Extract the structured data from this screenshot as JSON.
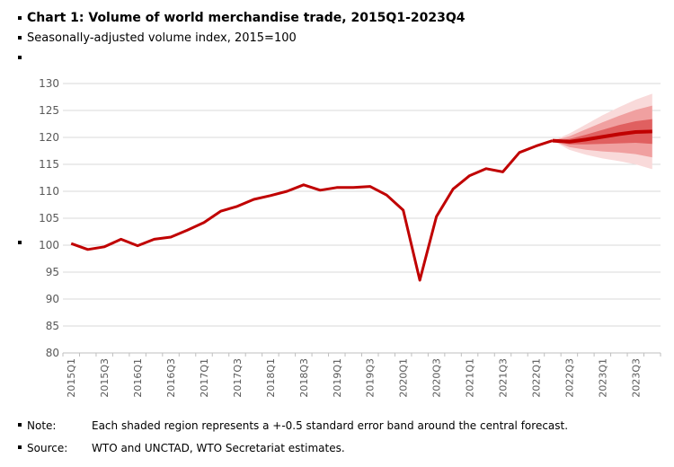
{
  "chart_data": {
    "type": "line",
    "title": "Chart 1: Volume of world merchandise trade, 2015Q1-2023Q4",
    "subtitle": "Seasonally-adjusted volume index, 2015=100",
    "categories": [
      "2015Q1",
      null,
      "2015Q3",
      null,
      "2016Q1",
      null,
      "2016Q3",
      null,
      "2017Q1",
      null,
      "2017Q3",
      null,
      "2018Q1",
      null,
      "2018Q3",
      null,
      "2019Q1",
      null,
      "2019Q3",
      null,
      "2020Q1",
      null,
      "2020Q3",
      null,
      "2021Q1",
      null,
      "2021Q3",
      null,
      "2022Q1",
      null,
      "2022Q3",
      null,
      "2023Q1",
      null,
      "2023Q3",
      null
    ],
    "series": [
      {
        "color": "#c00000",
        "values": [
          100.3,
          99.2,
          99.7,
          101.1,
          99.9,
          101.1,
          101.5,
          102.8,
          104.2,
          106.3,
          107.2,
          108.5,
          109.2,
          110.0,
          111.2,
          110.2,
          110.7,
          110.7,
          110.9,
          109.3,
          106.5,
          93.5,
          105.3,
          110.4,
          112.9,
          114.2,
          113.6,
          117.2,
          118.4,
          119.4,
          null,
          null,
          null,
          null,
          null,
          null
        ]
      },
      {
        "color": "#c00000",
        "values": [
          null,
          null,
          null,
          null,
          null,
          null,
          null,
          null,
          null,
          null,
          null,
          null,
          null,
          null,
          null,
          null,
          null,
          null,
          null,
          null,
          null,
          null,
          null,
          null,
          null,
          null,
          null,
          null,
          null,
          119.4,
          119.2,
          119.6,
          120.1,
          120.6,
          121.0,
          121.1
        ]
      }
    ],
    "bands": [
      {
        "color": "#f9dada",
        "upper": [
          null,
          null,
          null,
          null,
          null,
          null,
          null,
          null,
          null,
          null,
          null,
          null,
          null,
          null,
          null,
          null,
          null,
          null,
          null,
          null,
          null,
          null,
          null,
          null,
          null,
          null,
          null,
          null,
          null,
          119.4,
          120.7,
          122.4,
          124.1,
          125.6,
          127.0,
          128.1
        ],
        "lower": [
          null,
          null,
          null,
          null,
          null,
          null,
          null,
          null,
          null,
          null,
          null,
          null,
          null,
          null,
          null,
          null,
          null,
          null,
          null,
          null,
          null,
          null,
          null,
          null,
          null,
          null,
          null,
          null,
          null,
          119.4,
          117.7,
          116.8,
          116.1,
          115.6,
          115.0,
          114.1
        ]
      },
      {
        "color": "#f0a0a0",
        "upper": [
          null,
          null,
          null,
          null,
          null,
          null,
          null,
          null,
          null,
          null,
          null,
          null,
          null,
          null,
          null,
          null,
          null,
          null,
          null,
          null,
          null,
          null,
          null,
          null,
          null,
          null,
          null,
          null,
          null,
          119.4,
          120.2,
          121.5,
          122.8,
          124.0,
          125.1,
          125.9
        ],
        "lower": [
          null,
          null,
          null,
          null,
          null,
          null,
          null,
          null,
          null,
          null,
          null,
          null,
          null,
          null,
          null,
          null,
          null,
          null,
          null,
          null,
          null,
          null,
          null,
          null,
          null,
          null,
          null,
          null,
          null,
          119.4,
          118.2,
          117.7,
          117.4,
          117.2,
          116.9,
          116.3
        ]
      },
      {
        "color": "#e06060",
        "upper": [
          null,
          null,
          null,
          null,
          null,
          null,
          null,
          null,
          null,
          null,
          null,
          null,
          null,
          null,
          null,
          null,
          null,
          null,
          null,
          null,
          null,
          null,
          null,
          null,
          null,
          null,
          null,
          null,
          null,
          119.4,
          119.7,
          120.5,
          121.4,
          122.3,
          123.0,
          123.4
        ],
        "lower": [
          null,
          null,
          null,
          null,
          null,
          null,
          null,
          null,
          null,
          null,
          null,
          null,
          null,
          null,
          null,
          null,
          null,
          null,
          null,
          null,
          null,
          null,
          null,
          null,
          null,
          null,
          null,
          null,
          null,
          119.4,
          118.7,
          118.7,
          118.8,
          118.9,
          119.0,
          118.8
        ]
      }
    ],
    "ylim": [
      80,
      130
    ],
    "yticks": [
      80,
      85,
      90,
      95,
      100,
      105,
      110,
      115,
      120,
      125,
      130
    ],
    "grid": true,
    "note": {
      "label": "Note:",
      "text": "Each shaded region represents a +-0.5 standard error band around the central forecast."
    },
    "source": {
      "label": "Source:",
      "text": "WTO and UNCTAD, WTO Secretariat estimates."
    }
  }
}
